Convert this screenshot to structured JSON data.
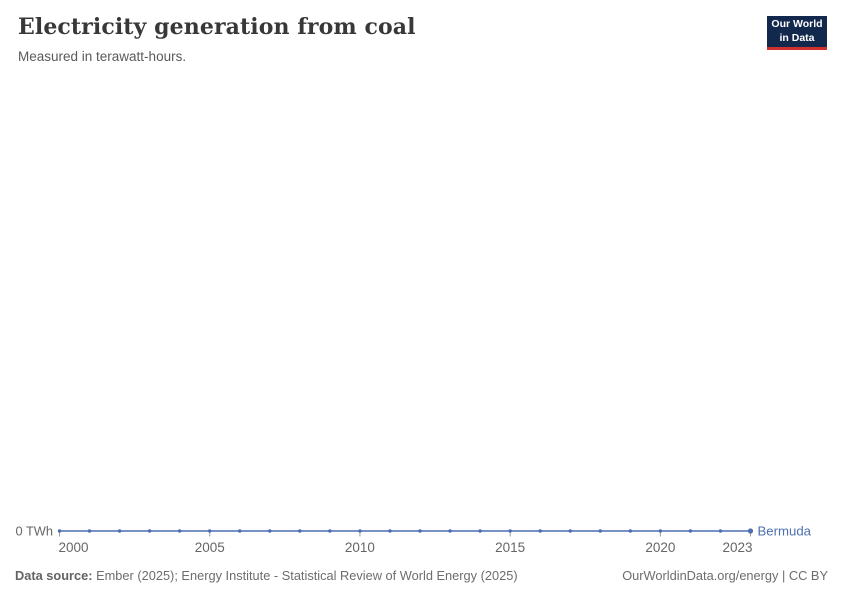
{
  "header": {
    "title": "Electricity generation from coal",
    "subtitle": "Measured in terawatt-hours.",
    "logo": {
      "line1": "Our World",
      "line2": "in Data"
    }
  },
  "chart_data": {
    "type": "line",
    "title": "Electricity generation from coal",
    "subtitle": "Measured in terawatt-hours.",
    "x": [
      2000,
      2001,
      2002,
      2003,
      2004,
      2005,
      2006,
      2007,
      2008,
      2009,
      2010,
      2011,
      2012,
      2013,
      2014,
      2015,
      2016,
      2017,
      2018,
      2019,
      2020,
      2021,
      2022,
      2023
    ],
    "series": [
      {
        "name": "Bermuda",
        "color": "#4c6fb1",
        "values": [
          0,
          0,
          0,
          0,
          0,
          0,
          0,
          0,
          0,
          0,
          0,
          0,
          0,
          0,
          0,
          0,
          0,
          0,
          0,
          0,
          0,
          0,
          0,
          0
        ]
      }
    ],
    "x_ticks": [
      2000,
      2005,
      2010,
      2015,
      2020,
      2023
    ],
    "y_tick_label": "0 TWh",
    "ylabel": "",
    "xlabel": "",
    "ylim": [
      0,
      0
    ],
    "grid": false,
    "legend_position": "end-of-line",
    "colors": {
      "axis_text": "#666666",
      "tick": "#9e9e9e",
      "line": "#4c6fb1"
    }
  },
  "footer": {
    "data_source_label": "Data source:",
    "data_source_text": " Ember (2025); Energy Institute - Statistical Review of World Energy (2025)",
    "link_text": "OurWorldinData.org/energy | CC BY"
  }
}
